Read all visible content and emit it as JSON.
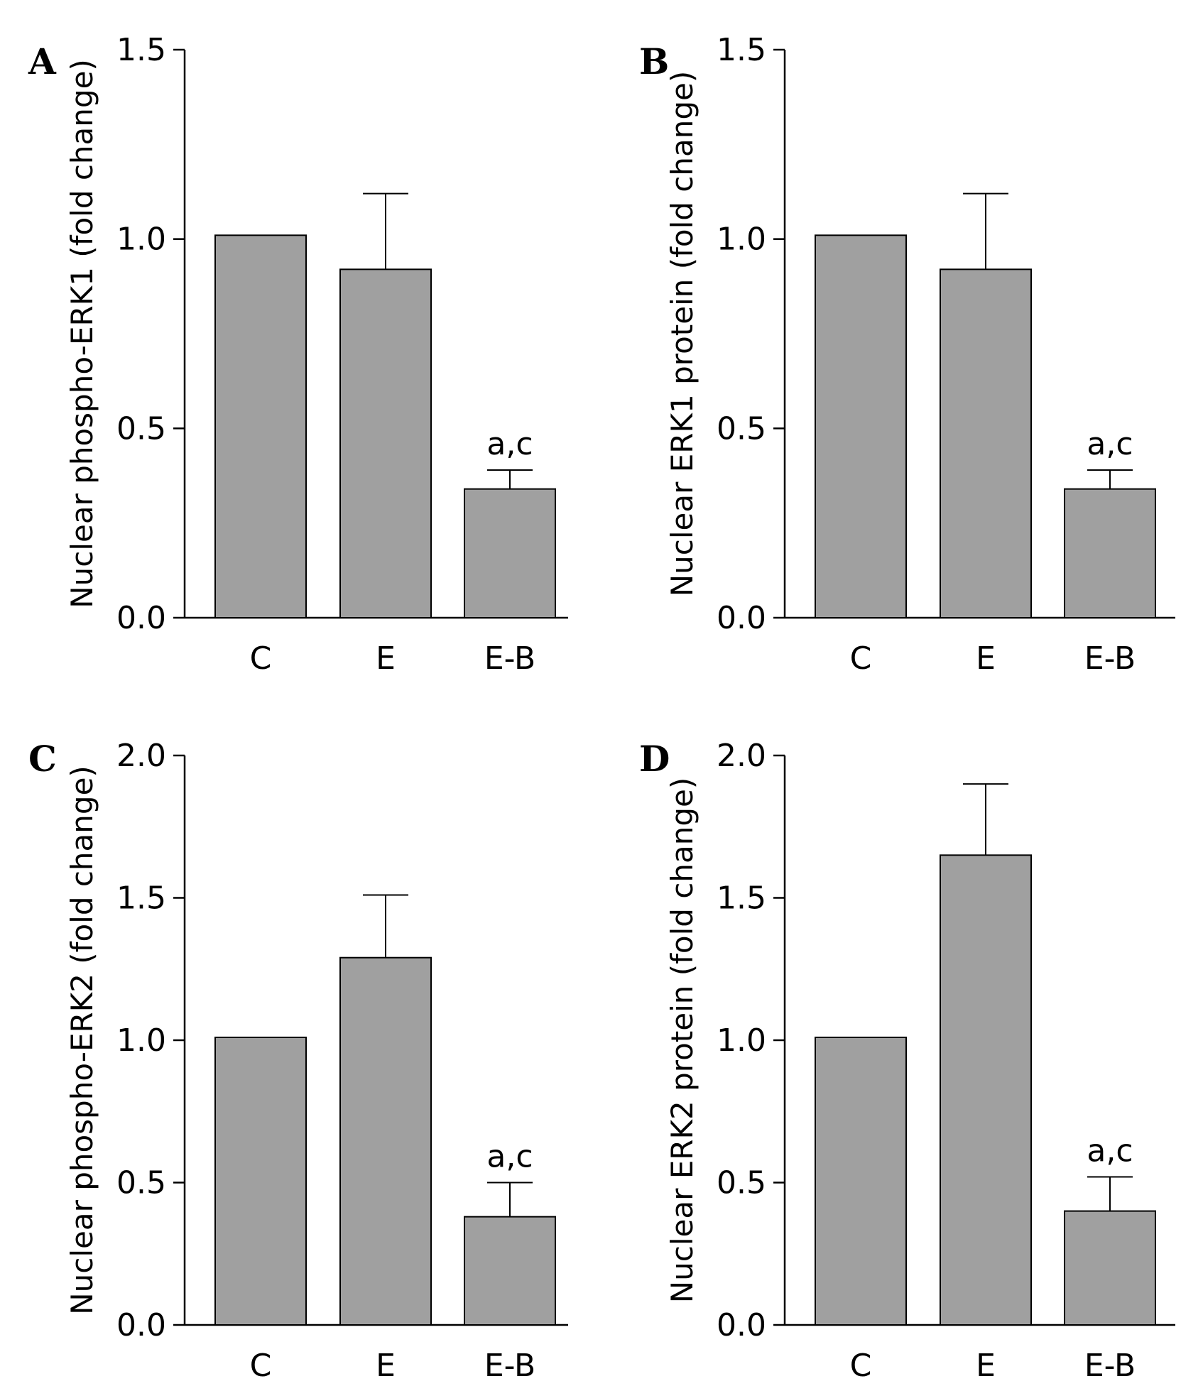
{
  "style": {
    "bar_color": "#a0a0a0",
    "axis_color": "#000000"
  },
  "chart_data": [
    {
      "panel": "A",
      "type": "bar",
      "categories": [
        "C",
        "E",
        "E-B"
      ],
      "values": [
        1.01,
        0.92,
        0.34
      ],
      "errors": [
        0,
        0.2,
        0.05
      ],
      "annotations": [
        "",
        "",
        "a,c"
      ],
      "ylabel": "Nuclear phospho-ERK1 (fold change)",
      "ylim": [
        0,
        1.5
      ],
      "yticks": [
        "0.0",
        "0.5",
        "1.0",
        "1.5"
      ],
      "grid": false
    },
    {
      "panel": "B",
      "type": "bar",
      "categories": [
        "C",
        "E",
        "E-B"
      ],
      "values": [
        1.01,
        0.92,
        0.34
      ],
      "errors": [
        0,
        0.2,
        0.05
      ],
      "annotations": [
        "",
        "",
        "a,c"
      ],
      "ylabel": "Nuclear ERK1 protein (fold change)",
      "ylim": [
        0,
        1.5
      ],
      "yticks": [
        "0.0",
        "0.5",
        "1.0",
        "1.5"
      ],
      "grid": false
    },
    {
      "panel": "C",
      "type": "bar",
      "categories": [
        "C",
        "E",
        "E-B"
      ],
      "values": [
        1.01,
        1.29,
        0.38
      ],
      "errors": [
        0,
        0.22,
        0.12
      ],
      "annotations": [
        "",
        "",
        "a,c"
      ],
      "ylabel": "Nuclear phospho-ERK2 (fold change)",
      "ylim": [
        0,
        2.0
      ],
      "yticks": [
        "0.0",
        "0.5",
        "1.0",
        "1.5",
        "2.0"
      ],
      "grid": false
    },
    {
      "panel": "D",
      "type": "bar",
      "categories": [
        "C",
        "E",
        "E-B"
      ],
      "values": [
        1.01,
        1.65,
        0.4
      ],
      "errors": [
        0,
        0.25,
        0.12
      ],
      "annotations": [
        "",
        "",
        "a,c"
      ],
      "ylabel": "Nuclear ERK2 protein (fold change)",
      "ylim": [
        0,
        2.0
      ],
      "yticks": [
        "0.0",
        "0.5",
        "1.0",
        "1.5",
        "2.0"
      ],
      "grid": false
    }
  ]
}
